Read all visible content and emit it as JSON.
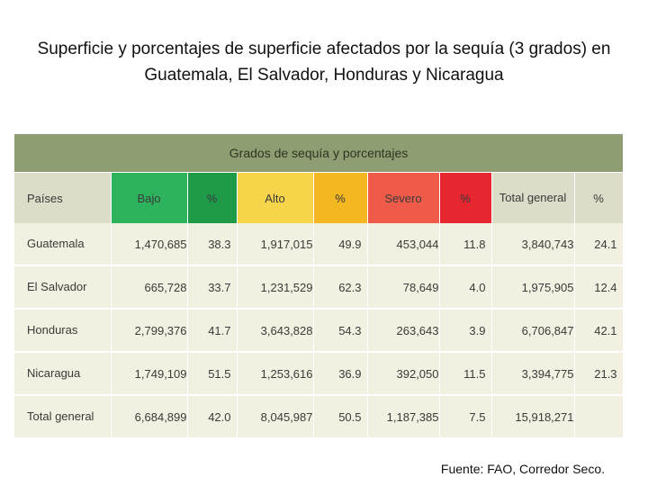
{
  "title": "Superficie y porcentajes de superficie afectados por la sequía (3 grados) en Guatemala, El Salvador, Honduras y Nicaragua",
  "table": {
    "group_header": "Grados de sequía y porcentajes",
    "columns": [
      "Países",
      "Bajo",
      "%",
      "Alto",
      "%",
      "Severo",
      "%",
      "Total general",
      "%"
    ],
    "column_colors": {
      "bajo": "#2db35d",
      "bajo_pct": "#1f9a49",
      "alto": "#f7d54a",
      "alto_pct": "#f3b722",
      "severo": "#ef5b49",
      "severo_pct": "#e7272f",
      "header_band": "#8f9e72",
      "row_bg": "#f2f0e0"
    },
    "rows": [
      [
        "Guatemala",
        "1,470,685",
        "38.3",
        "1,917,015",
        "49.9",
        "453,044",
        "11.8",
        "3,840,743",
        "24.1"
      ],
      [
        "El Salvador",
        "665,728",
        "33.7",
        "1,231,529",
        "62.3",
        "78,649",
        "4.0",
        "1,975,905",
        "12.4"
      ],
      [
        "Honduras",
        "2,799,376",
        "41.7",
        "3,643,828",
        "54.3",
        "263,643",
        "3.9",
        "6,706,847",
        "42.1"
      ],
      [
        "Nicaragua",
        "1,749,109",
        "51.5",
        "1,253,616",
        "36.9",
        "392,050",
        "11.5",
        "3,394,775",
        "21.3"
      ],
      [
        "Total general",
        "6,684,899",
        "42.0",
        "8,045,987",
        "50.5",
        "1,187,385",
        "7.5",
        "15,918,271",
        ""
      ]
    ]
  },
  "source": "Fuente: FAO, Corredor Seco."
}
